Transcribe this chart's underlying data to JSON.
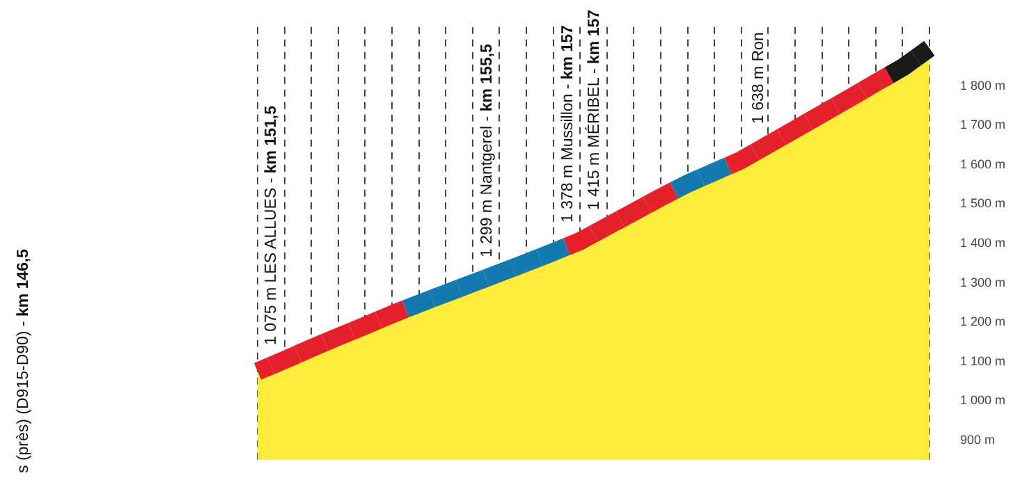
{
  "chart_data": {
    "type": "area",
    "categories": [
      null,
      null,
      null,
      null,
      null,
      null,
      null,
      null,
      null,
      null,
      null,
      null,
      null,
      null,
      null,
      null,
      null,
      null,
      null,
      null,
      null,
      null,
      null,
      null,
      null,
      null
    ],
    "series": [
      {
        "color": "#ffeb3b",
        "values": [
          1075,
          1104,
          1134,
          1163,
          1191,
          1220,
          1247,
          1273,
          1299,
          1325,
          1351,
          1378,
          1406,
          1443,
          1480,
          1517,
          1552,
          1582,
          1612,
          1651,
          1690,
          1729,
          1768,
          1808,
          1847,
          1896
        ],
        "colors": [
          "#e3202b",
          "#e3202b",
          "#e3202b",
          "#e3202b",
          "#e3202b",
          "#e3202b",
          "#1479ae",
          "#1479ae",
          "#1479ae",
          "#1479ae",
          "#1479ae",
          "#1479ae",
          "#e3202b",
          "#e3202b",
          "#e3202b",
          "#e3202b",
          "#1479ae",
          "#1479ae",
          "#e3202b",
          "#e3202b",
          "#e3202b",
          "#e3202b",
          "#e3202b",
          "#e3202b",
          "#1a1a1a",
          "#1a1a1a"
        ]
      }
    ],
    "ylim": [
      850,
      1950
    ],
    "yticks": [
      {
        "value": 900,
        "label": "900 m"
      },
      {
        "value": 1000,
        "label": "1 000 m"
      },
      {
        "value": 1100,
        "label": "1 100 m"
      },
      {
        "value": 1200,
        "label": "1 200 m"
      },
      {
        "value": 1300,
        "label": "1 300 m"
      },
      {
        "value": 1400,
        "label": "1 400 m"
      },
      {
        "value": 1500,
        "label": "1 500 m"
      },
      {
        "value": 1600,
        "label": "1 600 m"
      },
      {
        "value": 1700,
        "label": "1 700 m"
      },
      {
        "value": 1800,
        "label": "1 800 m"
      }
    ],
    "tick_labels": "y",
    "grid": "x",
    "annotations": [
      "s (près) (D915-D90) - km 146,5",
      "1 075 m LES ALLUES - km 151,5",
      "1 299 m Nantgerel - km 155,5",
      "1 378 m Mussillon - km 157",
      "1 415 m MÉRIBEL - km 157",
      "1 638 m Ron"
    ]
  }
}
